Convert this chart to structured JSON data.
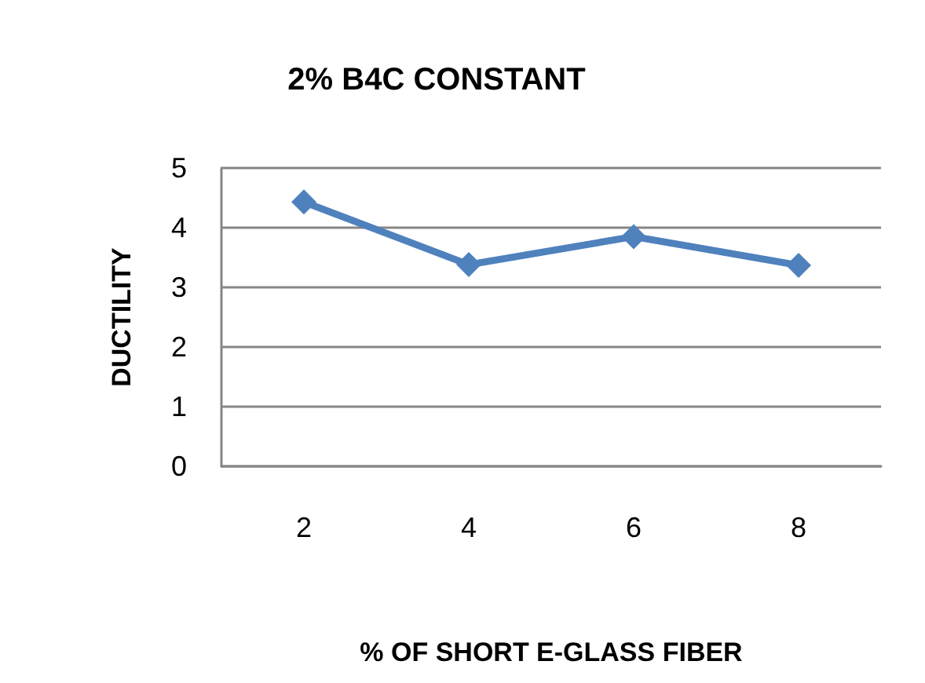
{
  "chart_data": {
    "type": "line",
    "title": "2% B4C CONSTANT",
    "xlabel": "% OF SHORT E-GLASS FIBER",
    "ylabel": "DUCTILITY",
    "categories": [
      "2",
      "4",
      "6",
      "8"
    ],
    "series": [
      {
        "color": "#4f81bd",
        "values": [
          4.43,
          3.38,
          3.85,
          3.37
        ]
      }
    ],
    "ylim": [
      0,
      5
    ],
    "yticks": [
      0,
      1,
      2,
      3,
      4,
      5
    ],
    "grid": "y",
    "marker": "diamond",
    "line_style": "solid"
  }
}
